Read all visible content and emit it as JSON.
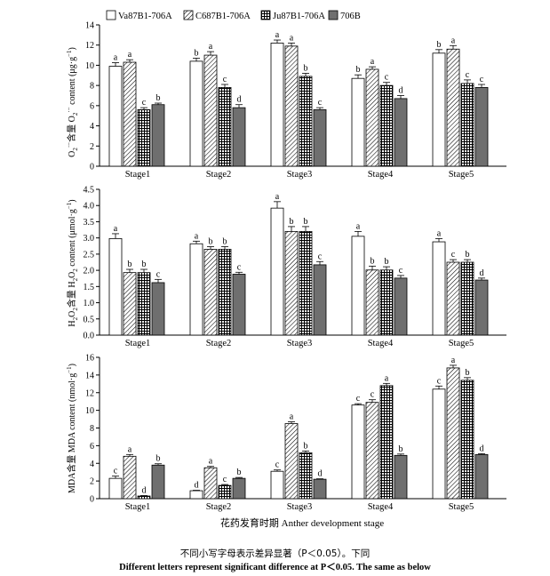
{
  "legend": {
    "entries": [
      "Va87B1-706A",
      "C687B1-706A",
      "Ju87B1-706A",
      "706B"
    ],
    "patterns": [
      "white",
      "diagonal",
      "grid",
      "gray"
    ]
  },
  "colors": {
    "bar_gray": "#6f6f6f",
    "axis": "#000000",
    "bar_white": "#ffffff"
  },
  "xlabel": "花药发育时期 Anther development stage",
  "caption": {
    "cn": "不同小写字母表示差异显著（P＜0.05）。下同",
    "en": "Different letters represent significant difference at P＜0.05. The same as below"
  },
  "chart_data": [
    {
      "type": "bar",
      "ylabel": "O₂⁻含量 O₂⁻ content (μg·g⁻¹)",
      "ylabel_parts": [
        "O",
        "2",
        "·−",
        "含量 O",
        "2",
        "·−",
        " content (μg·g",
        "−1",
        ")"
      ],
      "ylim": [
        0,
        14
      ],
      "yticks": [
        0,
        2,
        4,
        6,
        8,
        10,
        12,
        14
      ],
      "tick_decimals": 0,
      "categories": [
        "Stage1",
        "Stage2",
        "Stage3",
        "Stage4",
        "Stage5"
      ],
      "series": [
        {
          "name": "Va87B1-706A",
          "values": [
            9.9,
            10.4,
            12.2,
            8.7,
            11.2
          ],
          "errors": [
            0.35,
            0.3,
            0.3,
            0.35,
            0.35
          ],
          "letters": [
            "a",
            "b",
            "a",
            "b",
            "b"
          ]
        },
        {
          "name": "C687B1-706A",
          "values": [
            10.3,
            11.0,
            11.9,
            9.6,
            11.6
          ],
          "errors": [
            0.25,
            0.35,
            0.3,
            0.25,
            0.35
          ],
          "letters": [
            "a",
            "a",
            "a",
            "a",
            "a"
          ]
        },
        {
          "name": "Ju87B1-706A",
          "values": [
            5.6,
            7.8,
            8.9,
            8.0,
            8.2
          ],
          "errors": [
            0.2,
            0.3,
            0.3,
            0.3,
            0.35
          ],
          "letters": [
            "c",
            "c",
            "b",
            "c",
            "c"
          ]
        },
        {
          "name": "706B",
          "values": [
            6.1,
            5.8,
            5.6,
            6.7,
            7.8
          ],
          "errors": [
            0.15,
            0.3,
            0.2,
            0.3,
            0.3
          ],
          "letters": [
            "b",
            "d",
            "c",
            "d",
            "c"
          ]
        }
      ]
    },
    {
      "type": "bar",
      "ylabel": "H₂O₂含量 H₂O₂ content (μmol·g⁻¹)",
      "ylabel_parts": [
        "H",
        "2",
        "O",
        "2",
        "含量 H",
        "2",
        "O",
        "2",
        " content (μmol·g",
        "−1",
        ")"
      ],
      "ylim": [
        0,
        4.5
      ],
      "yticks": [
        0,
        0.5,
        1.0,
        1.5,
        2.0,
        2.5,
        3.0,
        3.5,
        4.0,
        4.5
      ],
      "tick_decimals": 1,
      "categories": [
        "Stage1",
        "Stage2",
        "Stage3",
        "Stage4",
        "Stage5"
      ],
      "series": [
        {
          "name": "Va87B1-706A",
          "values": [
            2.98,
            2.82,
            3.92,
            3.05,
            2.88
          ],
          "errors": [
            0.15,
            0.08,
            0.2,
            0.15,
            0.1
          ],
          "letters": [
            "a",
            "a",
            "a",
            "a",
            "a"
          ]
        },
        {
          "name": "C687B1-706A",
          "values": [
            1.93,
            2.65,
            3.2,
            2.01,
            2.25
          ],
          "errors": [
            0.1,
            0.08,
            0.15,
            0.12,
            0.08
          ],
          "letters": [
            "b",
            "b",
            "b",
            "b",
            "c"
          ]
        },
        {
          "name": "Ju87B1-706A",
          "values": [
            1.93,
            2.65,
            3.2,
            2.01,
            2.25
          ],
          "errors": [
            0.1,
            0.08,
            0.15,
            0.1,
            0.08
          ],
          "letters": [
            "b",
            "b",
            "b",
            "b",
            "b"
          ]
        },
        {
          "name": "706B",
          "values": [
            1.62,
            1.88,
            2.17,
            1.76,
            1.7
          ],
          "errors": [
            0.1,
            0.06,
            0.1,
            0.08,
            0.06
          ],
          "letters": [
            "c",
            "c",
            "c",
            "c",
            "d"
          ]
        }
      ]
    },
    {
      "type": "bar",
      "ylabel": "MDA含量 MDA content (nmol·g⁻¹)",
      "ylabel_parts": [
        "MDA含量 MDA content (nmol·g",
        "−1",
        ")"
      ],
      "ylim": [
        0,
        16
      ],
      "yticks": [
        0,
        2,
        4,
        6,
        8,
        10,
        12,
        14,
        16
      ],
      "tick_decimals": 0,
      "categories": [
        "Stage1",
        "Stage2",
        "Stage3",
        "Stage4",
        "Stage5"
      ],
      "series": [
        {
          "name": "Va87B1-706A",
          "values": [
            2.3,
            0.9,
            3.1,
            10.6,
            12.4
          ],
          "errors": [
            0.25,
            0.05,
            0.15,
            0.15,
            0.35
          ],
          "letters": [
            "c",
            "d",
            "c",
            "c",
            "c"
          ]
        },
        {
          "name": "C687B1-706A",
          "values": [
            4.8,
            3.5,
            8.5,
            10.9,
            14.8
          ],
          "errors": [
            0.2,
            0.15,
            0.2,
            0.3,
            0.3
          ],
          "letters": [
            "a",
            "a",
            "a",
            "c",
            "a"
          ]
        },
        {
          "name": "Ju87B1-706A",
          "values": [
            0.3,
            1.5,
            5.2,
            12.8,
            13.4
          ],
          "errors": [
            0.05,
            0.1,
            0.2,
            0.25,
            0.3
          ],
          "letters": [
            "d",
            "c",
            "b",
            "a",
            "b"
          ]
        },
        {
          "name": "706B",
          "values": [
            3.8,
            2.3,
            2.2,
            4.9,
            5.0
          ],
          "errors": [
            0.15,
            0.1,
            0.05,
            0.15,
            0.1
          ],
          "letters": [
            "b",
            "b",
            "d",
            "b",
            "d"
          ]
        }
      ]
    }
  ]
}
